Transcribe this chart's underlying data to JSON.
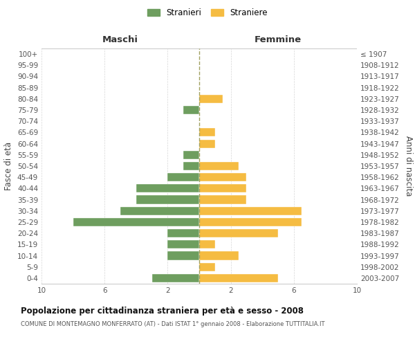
{
  "age_groups": [
    "100+",
    "95-99",
    "90-94",
    "85-89",
    "80-84",
    "75-79",
    "70-74",
    "65-69",
    "60-64",
    "55-59",
    "50-54",
    "45-49",
    "40-44",
    "35-39",
    "30-34",
    "25-29",
    "20-24",
    "15-19",
    "10-14",
    "5-9",
    "0-4"
  ],
  "birth_years": [
    "≤ 1907",
    "1908-1912",
    "1913-1917",
    "1918-1922",
    "1923-1927",
    "1928-1932",
    "1933-1937",
    "1938-1942",
    "1943-1947",
    "1948-1952",
    "1953-1957",
    "1958-1962",
    "1963-1967",
    "1968-1972",
    "1973-1977",
    "1978-1982",
    "1983-1987",
    "1988-1992",
    "1993-1997",
    "1998-2002",
    "2003-2007"
  ],
  "males": [
    0,
    0,
    0,
    0,
    0,
    1,
    0,
    0,
    0,
    1,
    1,
    2,
    4,
    4,
    5,
    8,
    2,
    2,
    2,
    0,
    3
  ],
  "females": [
    0,
    0,
    0,
    0,
    1.5,
    0,
    0,
    1,
    1,
    0,
    2.5,
    3,
    3,
    3,
    6.5,
    6.5,
    5,
    1,
    2.5,
    1,
    5
  ],
  "male_color": "#6e9e5f",
  "female_color": "#f5bc42",
  "background_color": "#ffffff",
  "grid_color": "#cccccc",
  "title": "Popolazione per cittadinanza straniera per età e sesso - 2008",
  "subtitle": "COMUNE DI MONTEMAGNO MONFERRATO (AT) - Dati ISTAT 1° gennaio 2008 - Elaborazione TUTTITALIA.IT",
  "header_left": "Maschi",
  "header_right": "Femmine",
  "ylabel_left": "Fasce di età",
  "ylabel_right": "Anni di nascita",
  "legend_male": "Stranieri",
  "legend_female": "Straniere",
  "center_line_color": "#a0a060",
  "xlim": 10,
  "xticks": [
    10,
    6,
    2,
    2,
    6,
    10
  ],
  "xtick_labels": [
    "10",
    "6",
    "2",
    "2",
    "6",
    "10"
  ]
}
